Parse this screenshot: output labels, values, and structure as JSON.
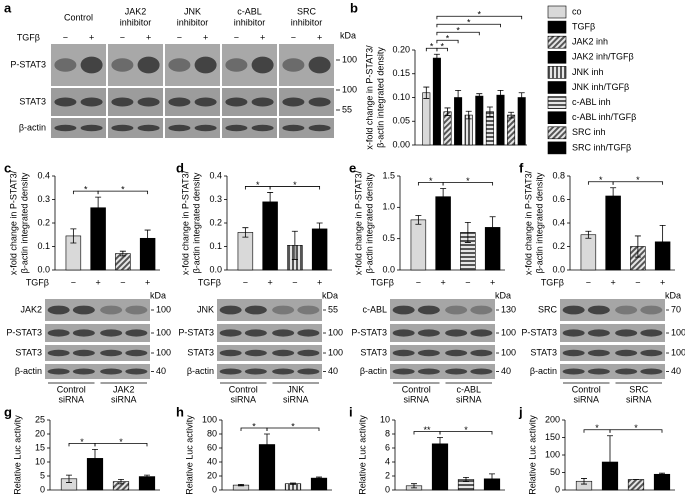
{
  "western_blot": {
    "panel": "a",
    "groups": [
      [
        "Control"
      ],
      [
        "JAK2",
        "inhibitor"
      ],
      [
        "JNK",
        "inhibitor"
      ],
      [
        "c-ABL",
        "inhibitor"
      ],
      [
        "SRC",
        "inhibitor"
      ]
    ],
    "treatment": "TGFβ",
    "lanes": [
      "−",
      "+",
      "−",
      "+",
      "−",
      "+",
      "−",
      "+",
      "−",
      "+"
    ],
    "rows": [
      "P-STAT3",
      "STAT3",
      "β-actin"
    ],
    "unit": "kDa",
    "markers": [
      100,
      100,
      55
    ]
  },
  "chart_data": [
    {
      "panel": "b",
      "type": "bar",
      "ylabel": [
        "x-fold change in P-STAT3/",
        "β-actin integrated density"
      ],
      "categories": [
        "co",
        "TGFβ",
        "JAK2 inh",
        "JAK2 inh/TGFβ",
        "JNK inh",
        "JNK inh/TGFβ",
        "c-ABL inh",
        "c-ABL inh/TGFβ",
        "SRC inh",
        "SRC inh/TGFβ"
      ],
      "values": [
        0.11,
        0.183,
        0.07,
        0.1,
        0.063,
        0.103,
        0.07,
        0.105,
        0.063,
        0.1
      ],
      "errors": [
        0.012,
        0.008,
        0.008,
        0.015,
        0.008,
        0.005,
        0.01,
        0.01,
        0.006,
        0.01
      ],
      "colors": [
        "#d9d9d9",
        "#000000",
        "#555555",
        "#000000",
        "#555555",
        "#000000",
        "#555555",
        "#000000",
        "#555555",
        "#000000"
      ],
      "patterns": [
        "solid",
        "solid",
        "diagonal",
        "solid",
        "vertical",
        "solid",
        "horizontal",
        "solid",
        "diagonal",
        "solid"
      ],
      "legend": "right",
      "ylim": [
        0,
        0.2
      ],
      "yticks": [
        {
          "value": 0,
          "label": "0.00"
        },
        0.05,
        {
          "value": 0.1,
          "label": "0.10"
        },
        0.15,
        {
          "value": 0.2,
          "label": "0.20"
        }
      ],
      "brackets": [
        {
          "from": 0,
          "to": 1,
          "label": "*"
        },
        {
          "from": 1,
          "to": 2,
          "label": "*"
        },
        {
          "from": 1,
          "to": 3,
          "label": "*"
        },
        {
          "from": 1,
          "to": 5,
          "label": "*"
        },
        {
          "from": 1,
          "to": 7,
          "label": "*"
        },
        {
          "from": 1,
          "to": 9,
          "label": "*"
        }
      ]
    },
    {
      "panel": "c",
      "type": "bar",
      "ylabel": [
        "x-fold change in P-STAT3/",
        "β-actin integrated density"
      ],
      "x_label": "TGFβ",
      "categories": [
        "−",
        "+",
        "−",
        "+"
      ],
      "values": [
        0.145,
        0.265,
        0.07,
        0.135
      ],
      "errors": [
        0.03,
        0.045,
        0.01,
        0.035
      ],
      "colors": [
        "#d9d9d9",
        "#000000",
        "#555555",
        "#000000"
      ],
      "patterns": [
        "solid",
        "solid",
        "diagonal",
        "solid"
      ],
      "ylim": [
        0,
        0.4
      ],
      "yticks": [
        {
          "value": 0,
          "label": "0.0"
        },
        0.1,
        0.2,
        0.3,
        0.4
      ],
      "brackets": [
        {
          "from": 0,
          "to": 1,
          "label": "*"
        },
        {
          "from": 1,
          "to": 3,
          "label": "*"
        }
      ],
      "blot": {
        "rows": [
          "JAK2",
          "P-STAT3",
          "STAT3",
          "β-actin"
        ],
        "markers": [
          100,
          100,
          100,
          40
        ],
        "unit": "kDa",
        "groups": [
          [
            "Control",
            "siRNA"
          ],
          [
            "JAK2",
            "siRNA"
          ]
        ]
      }
    },
    {
      "panel": "d",
      "type": "bar",
      "ylabel": [
        "x-fold change in P-STAT3/",
        "β-actin integrated density"
      ],
      "x_label": "TGFβ",
      "categories": [
        "−",
        "+",
        "−",
        "+"
      ],
      "values": [
        0.16,
        0.29,
        0.105,
        0.175
      ],
      "errors": [
        0.02,
        0.04,
        0.06,
        0.025
      ],
      "colors": [
        "#d9d9d9",
        "#000000",
        "#555555",
        "#000000"
      ],
      "patterns": [
        "solid",
        "solid",
        "vertical",
        "solid"
      ],
      "ylim": [
        0,
        0.4
      ],
      "yticks": [
        {
          "value": 0,
          "label": "0.0"
        },
        0.1,
        0.2,
        0.3,
        0.4
      ],
      "brackets": [
        {
          "from": 0,
          "to": 1,
          "label": "*"
        },
        {
          "from": 1,
          "to": 3,
          "label": "*"
        }
      ],
      "blot": {
        "rows": [
          "JNK",
          "P-STAT3",
          "STAT3",
          "β-actin"
        ],
        "markers": [
          55,
          100,
          100,
          40
        ],
        "unit": "kDa",
        "groups": [
          [
            "Control",
            "siRNA"
          ],
          [
            "JNK",
            "siRNA"
          ]
        ]
      }
    },
    {
      "panel": "e",
      "type": "bar",
      "ylabel": [
        "x-fold change in P-STAT3/",
        "β-actin integrated density"
      ],
      "x_label": "TGFβ",
      "categories": [
        "−",
        "+",
        "−",
        "+"
      ],
      "values": [
        0.8,
        1.17,
        0.6,
        0.68
      ],
      "errors": [
        0.07,
        0.13,
        0.16,
        0.17
      ],
      "colors": [
        "#d9d9d9",
        "#000000",
        "#555555",
        "#000000"
      ],
      "patterns": [
        "solid",
        "solid",
        "horizontal",
        "solid"
      ],
      "ylim": [
        0,
        1.5
      ],
      "yticks": [
        {
          "value": 0,
          "label": "0.0"
        },
        0.5,
        {
          "value": 1,
          "label": "1.0"
        },
        1.5
      ],
      "brackets": [
        {
          "from": 0,
          "to": 1,
          "label": "*"
        },
        {
          "from": 1,
          "to": 3,
          "label": "*"
        }
      ],
      "blot": {
        "rows": [
          "c-ABL",
          "P-STAT3",
          "STAT3",
          "β-actin"
        ],
        "markers": [
          130,
          100,
          100,
          40
        ],
        "unit": "kDa",
        "groups": [
          [
            "Control",
            "siRNA"
          ],
          [
            "c-ABL",
            "siRNA"
          ]
        ]
      }
    },
    {
      "panel": "f",
      "type": "bar",
      "ylabel": [
        "x-fold change in P-STAT3/",
        "β-actin integrated density"
      ],
      "x_label": "TGFβ",
      "categories": [
        "−",
        "+",
        "−",
        "+"
      ],
      "values": [
        0.3,
        0.63,
        0.2,
        0.24
      ],
      "errors": [
        0.03,
        0.07,
        0.09,
        0.14
      ],
      "colors": [
        "#d9d9d9",
        "#000000",
        "#555555",
        "#000000"
      ],
      "patterns": [
        "solid",
        "solid",
        "diagonal",
        "solid"
      ],
      "ylim": [
        0,
        0.8
      ],
      "yticks": [
        {
          "value": 0,
          "label": "0.0"
        },
        0.2,
        0.4,
        0.6,
        0.8
      ],
      "brackets": [
        {
          "from": 0,
          "to": 1,
          "label": "*"
        },
        {
          "from": 1,
          "to": 3,
          "label": "*"
        }
      ],
      "blot": {
        "rows": [
          "SRC",
          "P-STAT3",
          "STAT3",
          "β-actin"
        ],
        "markers": [
          70,
          100,
          100,
          40
        ],
        "unit": "kDa",
        "groups": [
          [
            "Control",
            "siRNA"
          ],
          [
            "SRC",
            "siRNA"
          ]
        ]
      }
    },
    {
      "panel": "g",
      "type": "bar",
      "ylabel": [
        "Relative Luc activity"
      ],
      "values": [
        4,
        11.3,
        3,
        4.8
      ],
      "errors": [
        1.3,
        3.2,
        0.8,
        0.5
      ],
      "colors": [
        "#d9d9d9",
        "#000000",
        "#555555",
        "#000000"
      ],
      "patterns": [
        "solid",
        "solid",
        "diagonal",
        "solid"
      ],
      "ylim": [
        0,
        25
      ],
      "yticks": [
        0,
        5,
        10,
        15,
        20,
        25
      ],
      "brackets": [
        {
          "from": 0,
          "to": 1,
          "label": "*"
        },
        {
          "from": 1,
          "to": 3,
          "label": "*"
        }
      ]
    },
    {
      "panel": "h",
      "type": "bar",
      "ylabel": [
        "Relative Luc activity"
      ],
      "values": [
        7,
        65,
        9,
        17
      ],
      "errors": [
        1,
        15,
        1,
        1.5
      ],
      "colors": [
        "#d9d9d9",
        "#000000",
        "#555555",
        "#000000"
      ],
      "patterns": [
        "solid",
        "solid",
        "vertical",
        "solid"
      ],
      "ylim": [
        0,
        100
      ],
      "yticks": [
        0,
        20,
        40,
        60,
        80,
        100
      ],
      "brackets": [
        {
          "from": 0,
          "to": 1,
          "label": "*"
        },
        {
          "from": 1,
          "to": 3,
          "label": "*"
        }
      ]
    },
    {
      "panel": "i",
      "type": "bar",
      "ylabel": [
        "Relative Luc activity"
      ],
      "values": [
        0.6,
        6.6,
        1.5,
        1.6
      ],
      "errors": [
        0.3,
        0.9,
        0.3,
        0.7
      ],
      "colors": [
        "#d9d9d9",
        "#000000",
        "#555555",
        "#000000"
      ],
      "patterns": [
        "solid",
        "solid",
        "horizontal",
        "solid"
      ],
      "ylim": [
        0,
        10
      ],
      "yticks": [
        0,
        2,
        4,
        6,
        8,
        10
      ],
      "brackets": [
        {
          "from": 0,
          "to": 1,
          "label": "**"
        },
        {
          "from": 1,
          "to": 3,
          "label": "*"
        }
      ]
    },
    {
      "panel": "j",
      "type": "bar",
      "ylabel": [
        "Relative Luc activity"
      ],
      "values": [
        25,
        80,
        30,
        45
      ],
      "errors": [
        8,
        75,
        0,
        3
      ],
      "colors": [
        "#d9d9d9",
        "#000000",
        "#555555",
        "#000000"
      ],
      "patterns": [
        "solid",
        "solid",
        "diagonal",
        "solid"
      ],
      "ylim": [
        0,
        200
      ],
      "yticks": [
        0,
        50,
        100,
        150,
        200
      ],
      "brackets": [
        {
          "from": 0,
          "to": 1,
          "label": "*"
        },
        {
          "from": 1,
          "to": 3,
          "label": "*"
        }
      ]
    }
  ]
}
